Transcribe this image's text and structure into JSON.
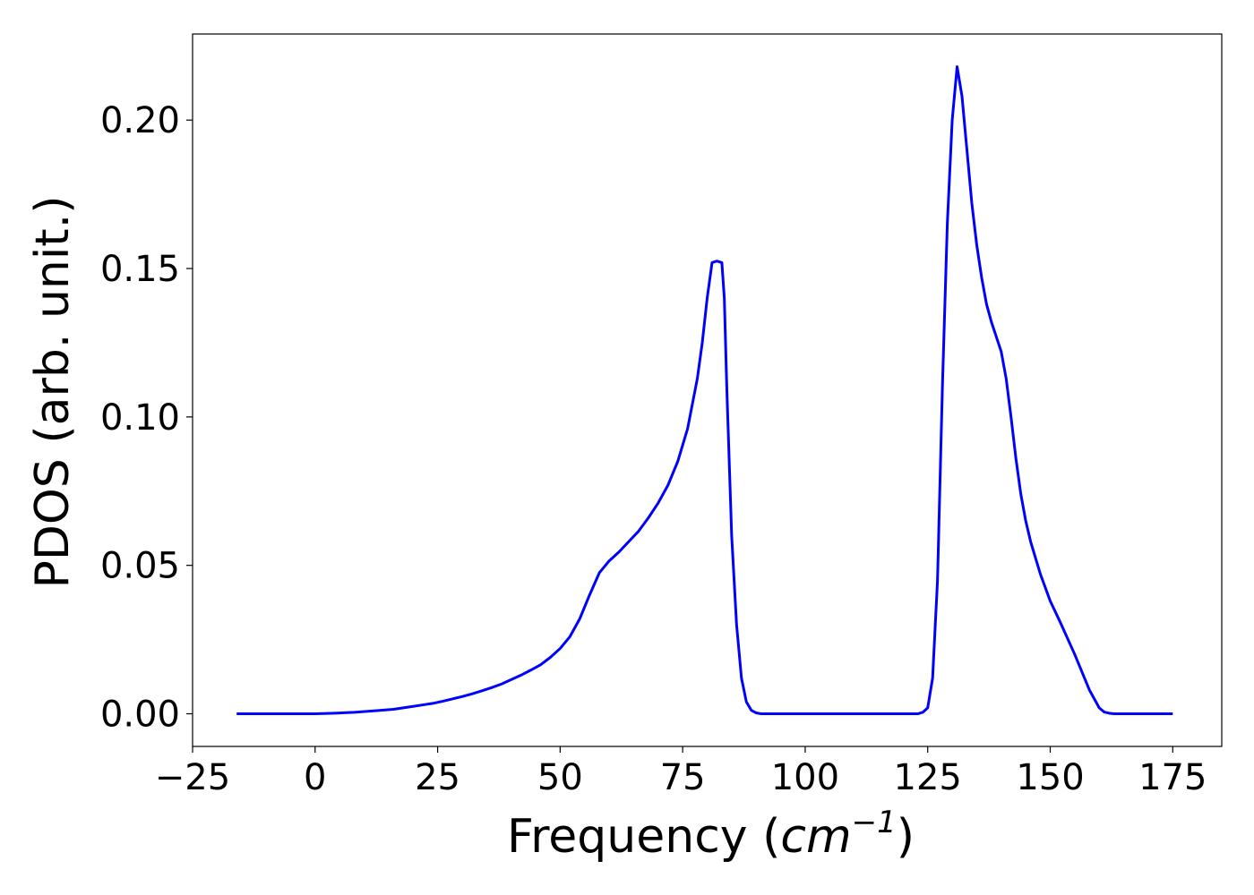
{
  "chart_data": {
    "type": "line",
    "xlabel_text": "Frequency (",
    "xlabel_math": "cm",
    "xlabel_sup": "−1",
    "xlabel_close": ")",
    "ylabel": "PDOS (arb. unit.)",
    "xlim": [
      -25,
      185
    ],
    "ylim": [
      -0.011,
      0.229
    ],
    "xticks": [
      -25,
      0,
      25,
      50,
      75,
      100,
      125,
      150,
      175
    ],
    "xtick_labels": [
      "−25",
      "0",
      "25",
      "50",
      "75",
      "100",
      "125",
      "150",
      "175"
    ],
    "yticks": [
      0.0,
      0.05,
      0.1,
      0.15,
      0.2
    ],
    "ytick_labels": [
      "0.00",
      "0.05",
      "0.10",
      "0.15",
      "0.20"
    ],
    "grid": false,
    "series": [
      {
        "color": "#0000ff",
        "x": [
          -16,
          -10,
          0,
          4,
          8,
          12,
          16,
          18,
          20,
          22,
          24,
          26,
          28,
          30,
          32,
          34,
          36,
          38,
          40,
          42,
          44,
          46,
          48,
          50,
          52,
          54,
          56,
          58,
          60,
          62,
          64,
          66,
          68,
          70,
          72,
          74,
          76,
          78,
          79,
          80,
          81,
          82,
          83,
          83.5,
          84,
          85,
          86,
          87,
          88,
          89,
          90,
          91,
          92,
          95,
          100,
          110,
          120,
          123,
          124,
          125,
          126,
          127,
          128,
          129,
          130,
          131,
          132,
          133,
          134,
          135,
          136,
          137,
          138,
          139,
          140,
          141,
          142,
          143,
          144,
          145,
          146,
          148,
          150,
          152,
          155,
          158,
          160,
          161,
          162,
          163,
          165,
          170,
          175
        ],
        "y": [
          0.0,
          0.0,
          0.0,
          0.0002,
          0.0005,
          0.001,
          0.0015,
          0.002,
          0.0025,
          0.003,
          0.0035,
          0.0042,
          0.005,
          0.0058,
          0.0067,
          0.0077,
          0.0088,
          0.01,
          0.0115,
          0.013,
          0.0147,
          0.0165,
          0.019,
          0.022,
          0.026,
          0.032,
          0.04,
          0.0475,
          0.0515,
          0.0545,
          0.058,
          0.0615,
          0.066,
          0.071,
          0.077,
          0.085,
          0.096,
          0.113,
          0.125,
          0.14,
          0.152,
          0.1525,
          0.152,
          0.14,
          0.11,
          0.06,
          0.03,
          0.012,
          0.004,
          0.0012,
          0.0003,
          0.0,
          0.0,
          0.0,
          0.0,
          0.0,
          0.0,
          0.0,
          0.0005,
          0.002,
          0.012,
          0.045,
          0.11,
          0.165,
          0.2,
          0.218,
          0.208,
          0.19,
          0.172,
          0.158,
          0.147,
          0.138,
          0.132,
          0.127,
          0.122,
          0.113,
          0.1,
          0.086,
          0.074,
          0.065,
          0.058,
          0.047,
          0.038,
          0.031,
          0.02,
          0.008,
          0.002,
          0.0006,
          0.0002,
          0.0,
          0.0,
          0.0,
          0.0
        ]
      }
    ]
  }
}
